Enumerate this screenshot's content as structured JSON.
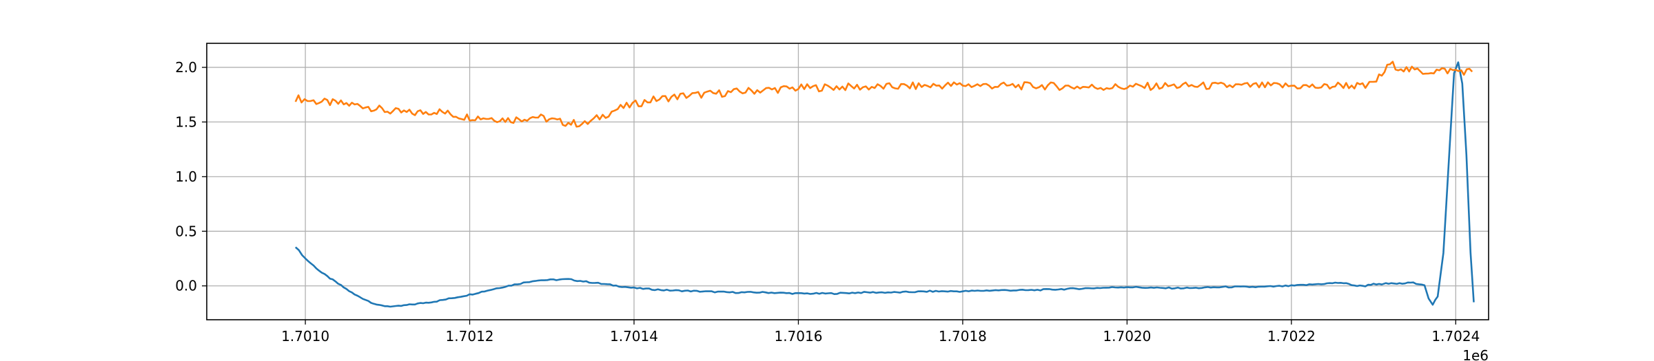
{
  "chart_data": {
    "type": "line",
    "title": "",
    "xlabel": "",
    "ylabel": "",
    "x_offset_label": "1e6",
    "xlim": [
      1.70088,
      1.70244
    ],
    "ylim": [
      -0.31,
      2.22
    ],
    "grid": true,
    "x_ticks": [
      {
        "value": 1.701,
        "label": "1.7010"
      },
      {
        "value": 1.7012,
        "label": "1.7012"
      },
      {
        "value": 1.7014,
        "label": "1.7014"
      },
      {
        "value": 1.7016,
        "label": "1.7016"
      },
      {
        "value": 1.7018,
        "label": "1.7018"
      },
      {
        "value": 1.702,
        "label": "1.7020"
      },
      {
        "value": 1.7022,
        "label": "1.7022"
      },
      {
        "value": 1.7024,
        "label": "1.7024"
      }
    ],
    "y_ticks": [
      {
        "value": 0.0,
        "label": "0.0"
      },
      {
        "value": 0.5,
        "label": "0.5"
      },
      {
        "value": 1.0,
        "label": "1.0"
      },
      {
        "value": 1.5,
        "label": "1.5"
      },
      {
        "value": 2.0,
        "label": "2.0"
      }
    ],
    "series": [
      {
        "color": "#1f77b4",
        "x": [
          1.700988,
          1.701,
          1.70102,
          1.70104,
          1.70106,
          1.70108,
          1.70109,
          1.70111,
          1.70113,
          1.70116,
          1.7012,
          1.70124,
          1.70128,
          1.70132,
          1.70136,
          1.7014,
          1.70144,
          1.70148,
          1.70152,
          1.70156,
          1.7016,
          1.70164,
          1.70168,
          1.70172,
          1.70176,
          1.7018,
          1.70184,
          1.70188,
          1.70192,
          1.70196,
          1.702,
          1.70204,
          1.70208,
          1.70212,
          1.70216,
          1.7022,
          1.70224,
          1.70226,
          1.70228,
          1.70229,
          1.7023,
          1.70231,
          1.702315,
          1.702325,
          1.702335,
          1.702345,
          1.702355,
          1.702362,
          1.702367,
          1.702372,
          1.702378,
          1.702385,
          1.702392,
          1.702398,
          1.702403,
          1.702408,
          1.702413,
          1.702418,
          1.702422
        ],
        "y": [
          0.36,
          0.25,
          0.12,
          0.02,
          -0.08,
          -0.15,
          -0.18,
          -0.19,
          -0.17,
          -0.14,
          -0.08,
          -0.01,
          0.05,
          0.06,
          0.02,
          -0.02,
          -0.04,
          -0.05,
          -0.06,
          -0.06,
          -0.07,
          -0.07,
          -0.06,
          -0.06,
          -0.05,
          -0.05,
          -0.04,
          -0.04,
          -0.03,
          -0.02,
          -0.01,
          -0.02,
          -0.02,
          -0.01,
          -0.01,
          0.0,
          0.02,
          0.03,
          0.0,
          0.0,
          0.02,
          0.01,
          0.02,
          0.02,
          0.02,
          0.03,
          0.02,
          0.01,
          -0.12,
          -0.17,
          -0.1,
          0.3,
          1.2,
          1.95,
          2.05,
          1.85,
          1.2,
          0.3,
          -0.15
        ],
        "note_series": "primary"
      },
      {
        "color": "#ff7f0e",
        "x": [
          1.700988,
          1.70101,
          1.70104,
          1.70107,
          1.7011,
          1.70113,
          1.70116,
          1.70119,
          1.70122,
          1.70125,
          1.70128,
          1.70131,
          1.70134,
          1.70138,
          1.70142,
          1.70146,
          1.7015,
          1.70155,
          1.7016,
          1.70165,
          1.7017,
          1.70175,
          1.7018,
          1.70185,
          1.7019,
          1.70195,
          1.702,
          1.70205,
          1.7021,
          1.70215,
          1.7022,
          1.70224,
          1.70226,
          1.70228,
          1.70229,
          1.702295,
          1.7023,
          1.70231,
          1.70232,
          1.70234,
          1.70236,
          1.70238,
          1.7024,
          1.70242
        ],
        "y": [
          1.72,
          1.69,
          1.67,
          1.65,
          1.6,
          1.58,
          1.6,
          1.55,
          1.54,
          1.52,
          1.55,
          1.5,
          1.48,
          1.62,
          1.7,
          1.74,
          1.76,
          1.79,
          1.81,
          1.82,
          1.82,
          1.83,
          1.84,
          1.83,
          1.83,
          1.82,
          1.82,
          1.83,
          1.83,
          1.83,
          1.83,
          1.82,
          1.84,
          1.83,
          1.82,
          1.84,
          1.86,
          1.93,
          2.03,
          1.98,
          1.96,
          1.97,
          1.97,
          1.96
        ]
      }
    ]
  }
}
